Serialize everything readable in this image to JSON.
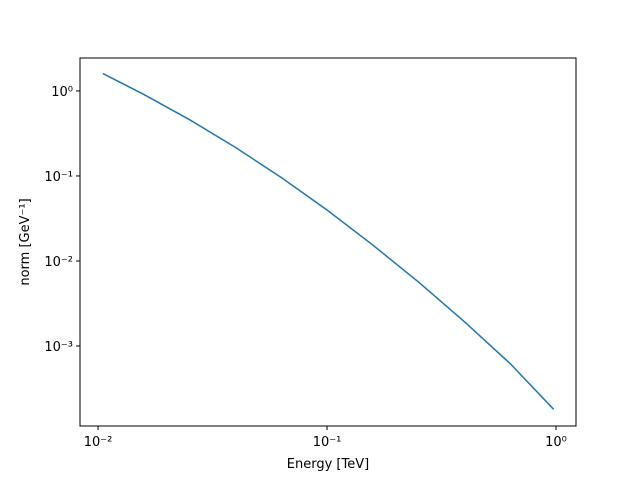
{
  "chart_data": {
    "type": "line",
    "xlabel": "Energy [TeV]",
    "ylabel": "norm [GeV⁻¹]",
    "xscale": "log",
    "yscale": "log",
    "x": [
      0.0105,
      0.0158,
      0.0251,
      0.0398,
      0.0631,
      0.1,
      0.158,
      0.251,
      0.398,
      0.631,
      0.977
    ],
    "series": [
      {
        "color": "#1f77b4",
        "values": [
          1.6,
          0.912,
          0.459,
          0.217,
          0.0959,
          0.0398,
          0.0155,
          0.00565,
          0.00193,
          0.00062,
          0.00018
        ]
      }
    ],
    "xlim": [
      0.00834,
      1.223
    ],
    "ylim": [
      0.0001146,
      2.44
    ],
    "xticks": [
      {
        "value": 0.01,
        "label": "10⁻²"
      },
      {
        "value": 0.1,
        "label": "10⁻¹"
      },
      {
        "value": 1,
        "label": "10⁰"
      }
    ],
    "yticks": [
      {
        "value": 0.001,
        "label": "10⁻³"
      },
      {
        "value": 0.01,
        "label": "10⁻²"
      },
      {
        "value": 0.1,
        "label": "10⁻¹"
      },
      {
        "value": 1,
        "label": "10⁰"
      }
    ]
  }
}
